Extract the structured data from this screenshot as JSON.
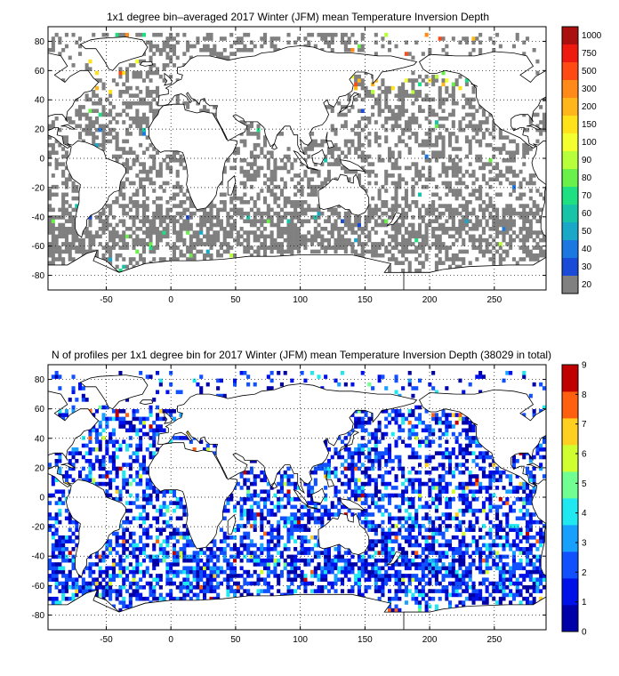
{
  "panels": [
    {
      "title": "1x1 degree bin–averaged 2017 Winter (JFM) mean Temperature Inversion Depth",
      "x_ticks": [
        "-50",
        "0",
        "50",
        "100",
        "150",
        "200",
        "250"
      ],
      "y_ticks": [
        "80",
        "60",
        "40",
        "20",
        "0",
        "-20",
        "-40",
        "-60",
        "-80"
      ],
      "colorbar_labels": [
        "1000",
        "750",
        "500",
        "300",
        "200",
        "150",
        "100",
        "90",
        "80",
        "70",
        "60",
        "50",
        "40",
        "30",
        "20"
      ],
      "colorbar_colors": [
        "#aa1010",
        "#ee1a10",
        "#ff4a14",
        "#ff8a1a",
        "#ffb61a",
        "#ffe21a",
        "#f4ff30",
        "#b6ff3a",
        "#6af04a",
        "#1ee082",
        "#18c4a8",
        "#1aa8c8",
        "#1a78e0",
        "#1a4ad8",
        "#808080"
      ]
    },
    {
      "title": "N of profiles per 1x1 degree bin for 2017 Winter (JFM) mean Temperature Inversion Depth  (38029 in total)",
      "x_ticks": [
        "-50",
        "0",
        "50",
        "100",
        "150",
        "200",
        "250"
      ],
      "y_ticks": [
        "80",
        "60",
        "40",
        "20",
        "0",
        "-20",
        "-40",
        "-60",
        "-80"
      ],
      "colorbar_labels": [
        "9",
        "8",
        "7",
        "6",
        "5",
        "4",
        "3",
        "2",
        "1",
        "0"
      ]
    }
  ],
  "colors": {
    "land": "#ffffff",
    "coast": "#000000",
    "no_data": "#808080"
  },
  "map_extent": {
    "lon": [
      -95,
      290
    ],
    "lat": [
      -90,
      90
    ]
  }
}
